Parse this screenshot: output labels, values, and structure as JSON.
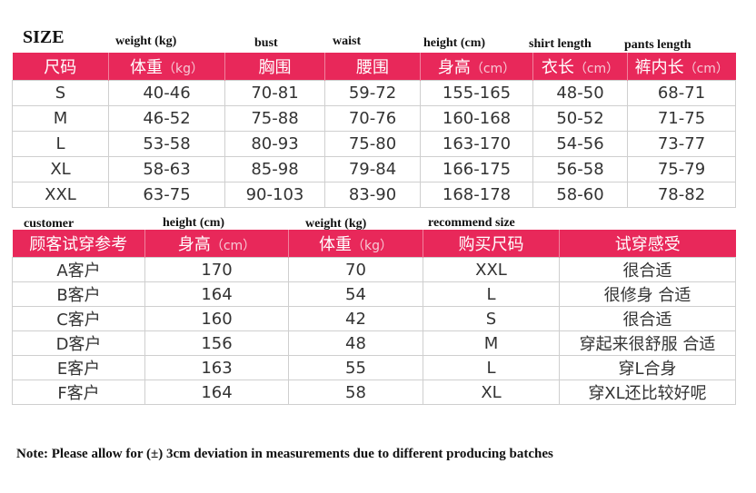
{
  "title": "SIZE",
  "size_labels_en": [
    "weight (kg)",
    "bust",
    "waist",
    "height (cm)",
    "shirt length",
    "pants length"
  ],
  "size_table": {
    "headers": [
      {
        "main": "尺码",
        "unit": ""
      },
      {
        "main": "体重",
        "unit": "（kg）"
      },
      {
        "main": "胸围",
        "unit": ""
      },
      {
        "main": "腰围",
        "unit": ""
      },
      {
        "main": "身高",
        "unit": "（cm）"
      },
      {
        "main": "衣长",
        "unit": "（cm）"
      },
      {
        "main": "裤内长",
        "unit": "（cm）"
      }
    ],
    "rows": [
      [
        "S",
        "40-46",
        "70-81",
        "59-72",
        "155-165",
        "48-50",
        "68-71"
      ],
      [
        "M",
        "46-52",
        "75-88",
        "70-76",
        "160-168",
        "50-52",
        "71-75"
      ],
      [
        "L",
        "53-58",
        "80-93",
        "75-80",
        "163-170",
        "54-56",
        "73-77"
      ],
      [
        "XL",
        "58-63",
        "85-98",
        "79-84",
        "166-175",
        "56-58",
        "75-79"
      ],
      [
        "XXL",
        "63-75",
        "90-103",
        "83-90",
        "168-178",
        "58-60",
        "78-82"
      ]
    ]
  },
  "customer_labels_en": [
    "customer",
    "height (cm)",
    "weight (kg)",
    "recommend size"
  ],
  "customer_table": {
    "headers": [
      {
        "main": "顾客试穿参考",
        "unit": ""
      },
      {
        "main": "身高",
        "unit": "（cm）"
      },
      {
        "main": "体重",
        "unit": "（kg）"
      },
      {
        "main": "购买尺码",
        "unit": ""
      },
      {
        "main": "试穿感受",
        "unit": ""
      }
    ],
    "rows": [
      [
        "A客户",
        "170",
        "70",
        "XXL",
        "很合适"
      ],
      [
        "B客户",
        "164",
        "54",
        "L",
        "很修身 合适"
      ],
      [
        "C客户",
        "160",
        "42",
        "S",
        "很合适"
      ],
      [
        "D客户",
        "156",
        "48",
        "M",
        "穿起来很舒服 合适"
      ],
      [
        "E客户",
        "163",
        "55",
        "L",
        "穿L合身"
      ],
      [
        "F客户",
        "164",
        "58",
        "XL",
        "穿XL还比较好呢"
      ]
    ]
  },
  "note": "Note: Please allow for (±) 3cm deviation in measurements due to different producing batches",
  "colors": {
    "header": "#e8285a",
    "grid": "#cfcfcf"
  }
}
